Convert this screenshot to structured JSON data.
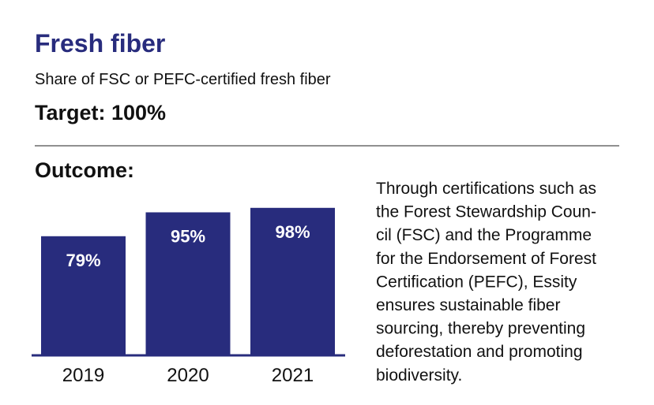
{
  "chart_data": {
    "type": "bar",
    "title": "Fresh fiber",
    "subtitle": "Share of FSC or PEFC-certified fresh fiber",
    "annotations": [
      "Target: 100%",
      "Outcome:"
    ],
    "categories": [
      "2019",
      "2020",
      "2021"
    ],
    "values": [
      79,
      95,
      98
    ],
    "value_labels": [
      "79%",
      "95%",
      "98%"
    ],
    "color": "#282c7d",
    "description": [
      "Through certifications such as",
      "the Forest Stewardship Coun-",
      "cil (FSC) and the Programme",
      "for the Endorsement of Forest",
      "Certification (PEFC), Essity",
      "ensures sustainable fiber",
      "sourcing, thereby preventing",
      "deforestation and promoting",
      "biodiversity."
    ]
  }
}
